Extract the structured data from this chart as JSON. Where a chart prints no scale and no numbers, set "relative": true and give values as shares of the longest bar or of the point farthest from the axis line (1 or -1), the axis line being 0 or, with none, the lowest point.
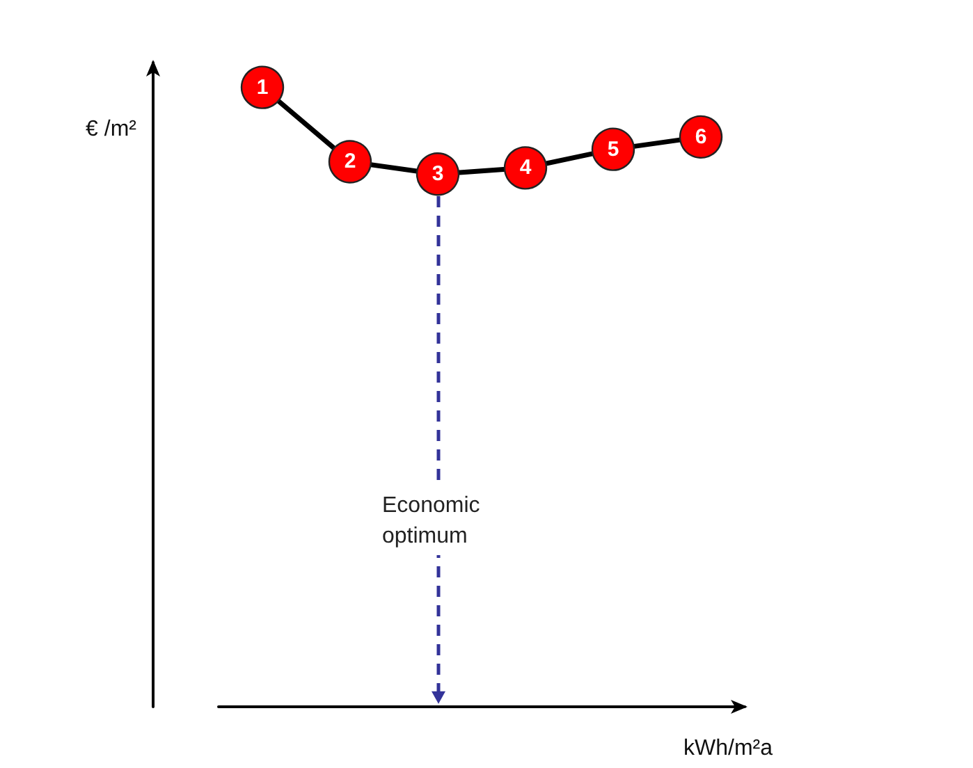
{
  "chart_data": {
    "type": "line",
    "relative": true,
    "xlabel": "kWh/m²a",
    "ylabel": "€ /m²",
    "categories": [
      null,
      null,
      null,
      null,
      null,
      null
    ],
    "marker": "circle",
    "series": [
      {
        "color": "#000000",
        "colors": [
          "#ff0000",
          "#ff0000",
          "#ff0000",
          "#ff0000",
          "#ff0000",
          "#ff0000"
        ],
        "values": [
          1,
          0.88,
          0.86,
          0.87,
          0.9,
          0.92
        ]
      }
    ],
    "annotations": [
      {
        "text": "1",
        "y": 1
      },
      {
        "text": "2",
        "y": 0.88
      },
      {
        "text": "3",
        "y": 0.86
      },
      {
        "text": "4",
        "y": 0.87
      },
      {
        "text": "5",
        "y": 0.9
      },
      {
        "text": "6",
        "y": 0.92
      },
      "Economic optimum"
    ]
  }
}
